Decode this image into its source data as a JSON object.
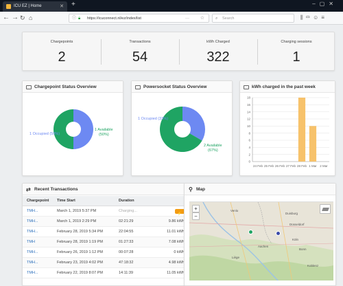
{
  "browser": {
    "tab_title": "ICU EZ | Home",
    "url": "https://icuconnect.nl/ez/index/list",
    "search_placeholder": "Search"
  },
  "stats": [
    {
      "label": "Chargepoints",
      "value": "2"
    },
    {
      "label": "Transactions",
      "value": "54"
    },
    {
      "label": "kWh Charged",
      "value": "322"
    },
    {
      "label": "Charging sessions",
      "value": "1"
    }
  ],
  "chargepoint_card": {
    "title": "Chargepoint Status Overview",
    "label_left": "1 Occupied (50%)",
    "label_right_1": "1 Available",
    "label_right_2": "(50%)"
  },
  "powersocket_card": {
    "title": "Powersocket Status Overview",
    "label_left": "1 Occupied (33%)",
    "label_right_1": "2 Available",
    "label_right_2": "(67%)"
  },
  "kwh_card": {
    "title": "kWh charged in the past week"
  },
  "chart_data": [
    {
      "type": "pie",
      "title": "Chargepoint Status Overview",
      "donut": true,
      "slices": [
        {
          "label": "Occupied",
          "value": 1,
          "percent": 50,
          "color": "#6d89f2"
        },
        {
          "label": "Available",
          "value": 1,
          "percent": 50,
          "color": "#1fa463"
        }
      ]
    },
    {
      "type": "pie",
      "title": "Powersocket Status Overview",
      "donut": true,
      "slices": [
        {
          "label": "Occupied",
          "value": 1,
          "percent": 33,
          "color": "#6d89f2"
        },
        {
          "label": "Available",
          "value": 2,
          "percent": 67,
          "color": "#1fa463"
        }
      ]
    },
    {
      "type": "bar",
      "title": "kWh charged in the past week",
      "categories": [
        "24 Feb",
        "25 Feb",
        "26 Feb",
        "27 Feb",
        "28 Feb",
        "1 Mar",
        "2 Mar"
      ],
      "values": [
        0,
        0,
        0,
        0,
        18,
        10,
        0
      ],
      "yticks": [
        "0",
        "2",
        "4",
        "6",
        "8",
        "10",
        "12",
        "14",
        "16",
        "18"
      ],
      "ylim": [
        0,
        18
      ],
      "grid": true,
      "color": "#f7c26b"
    }
  ],
  "transactions": {
    "title": "Recent Transactions",
    "headers": [
      "Chargepoint",
      "Time Start",
      "Duration",
      ""
    ],
    "rows": [
      {
        "cp": "TMH...",
        "start": "March 1, 2019 5:37 PM",
        "duration": "Charging...",
        "energy": "",
        "charging": true
      },
      {
        "cp": "TMH...",
        "start": "March 1, 2019 2:29 PM",
        "duration": "02:21:29",
        "energy": "9.86 kWh"
      },
      {
        "cp": "TMH...",
        "start": "February 28, 2019 5:34 PM",
        "duration": "22:04:55",
        "energy": "11.01 kWh"
      },
      {
        "cp": "TMH",
        "start": "February 28, 2019 1:19 PM",
        "duration": "01:27:33",
        "energy": "7.08 kWh"
      },
      {
        "cp": "TMH...",
        "start": "February 26, 2019 1:12 PM",
        "duration": "00:07:28",
        "energy": "0 kWh"
      },
      {
        "cp": "TMH...",
        "start": "February 23, 2019 4:02 PM",
        "duration": "47:18:32",
        "energy": "4.98 kWh"
      },
      {
        "cp": "TMH...",
        "start": "February 22, 2019 8:07 PM",
        "duration": "14:11:39",
        "energy": "11.05 kWh"
      }
    ]
  },
  "map": {
    "title": "Map",
    "zoom_in": "+",
    "zoom_out": "−",
    "place_labels": [
      "Venlo",
      "Duisburg",
      "Düsseldorf",
      "Köln",
      "Bonn",
      "Aachen",
      "Liège",
      "Koblenz"
    ]
  }
}
